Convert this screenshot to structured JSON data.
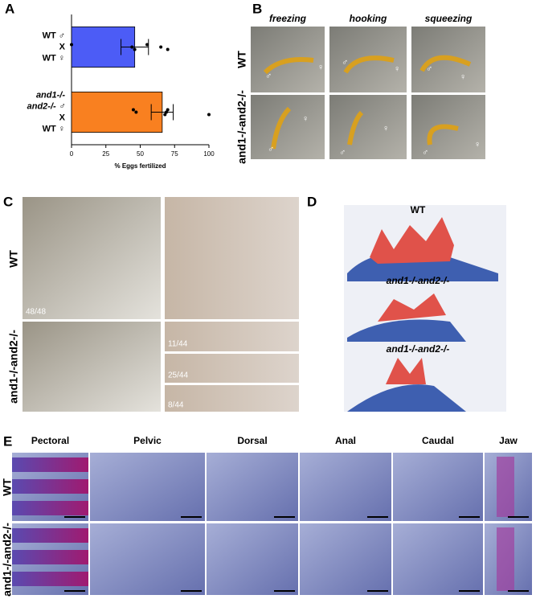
{
  "chart_data": {
    "type": "bar",
    "orientation": "horizontal",
    "categories": [
      [
        "WT ♂",
        "X",
        "WT ♀"
      ],
      [
        "and1-/-",
        "and2-/- ♂",
        "X",
        "WT ♀"
      ]
    ],
    "values": [
      46,
      66
    ],
    "errors": [
      10,
      8
    ],
    "colors": [
      "#4c5cf6",
      "#f98020"
    ],
    "points": [
      [
        0,
        44,
        46,
        55,
        65,
        70
      ],
      [
        45,
        47,
        68,
        70,
        69,
        100
      ]
    ],
    "xlabel": "% Eggs fertilized",
    "xlim": [
      0,
      100
    ],
    "xticks": [
      0,
      25,
      50,
      75,
      100
    ]
  },
  "panel_labels": [
    "A",
    "B",
    "C",
    "D",
    "E"
  ],
  "panel_b": {
    "columns": [
      "freezing",
      "hooking",
      "squeezing"
    ],
    "rows": [
      "WT",
      "and1-/-and2-/-"
    ],
    "male": "♂",
    "female": "♀"
  },
  "panel_c": {
    "rows": [
      "WT",
      "and1-/-and2-/-"
    ],
    "counts": [
      "48/48",
      "11/44",
      "25/44",
      "8/44"
    ]
  },
  "panel_d": {
    "labels": [
      "WT",
      "and1-/-and2-/-",
      "and1-/-and2-/-"
    ]
  },
  "panel_e": {
    "columns": [
      "Pectoral",
      "Pelvic",
      "Dorsal",
      "Anal",
      "Caudal",
      "Jaw"
    ],
    "rows": [
      "WT",
      "and1-/-and2-/-"
    ]
  }
}
